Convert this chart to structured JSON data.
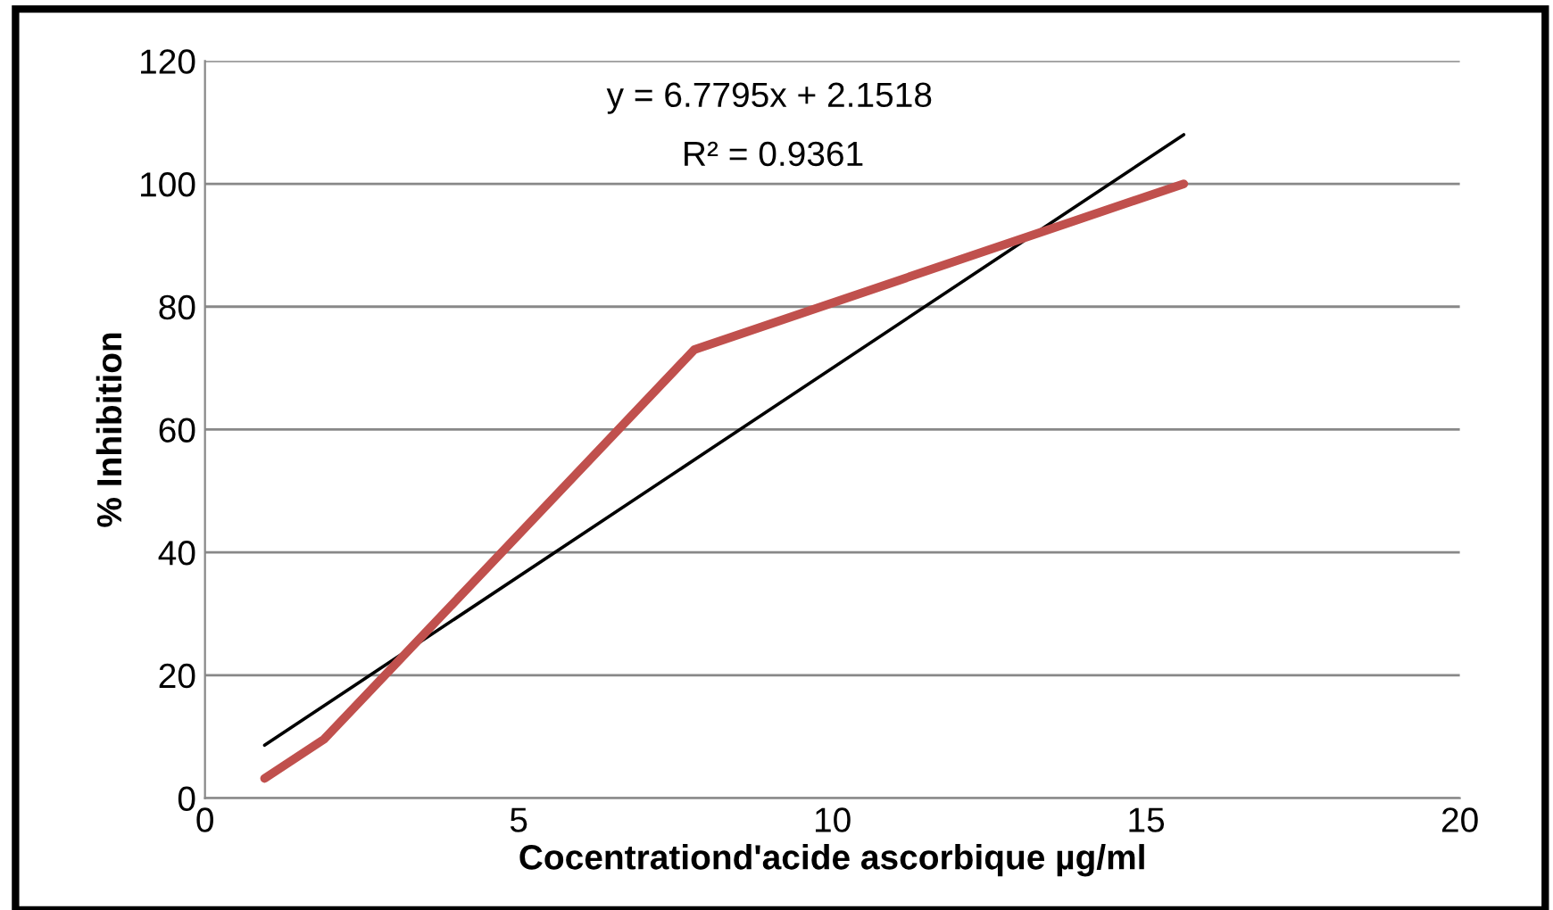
{
  "chart_data": {
    "type": "line",
    "xlabel": "Cocentrationd'acide ascorbique µg/ml",
    "ylabel": "% Inhibition",
    "xlim": [
      0,
      20
    ],
    "xticks": [
      0,
      5,
      10,
      15,
      20
    ],
    "ylim": [
      0,
      120
    ],
    "yticks": [
      0,
      20,
      40,
      60,
      80,
      100,
      120
    ],
    "grid": "y",
    "series": [
      {
        "color": "#c0504d",
        "x": [
          0.95,
          1.9,
          7.8,
          15.6
        ],
        "values": [
          3.2,
          9.6,
          73,
          100
        ]
      },
      {
        "color": "#000000",
        "x": [
          0.95,
          15.6
        ],
        "values": [
          8.6,
          108
        ]
      }
    ],
    "annotations": [
      "y = 6.7795x + 2.1518",
      "R² = 0.9361"
    ]
  }
}
